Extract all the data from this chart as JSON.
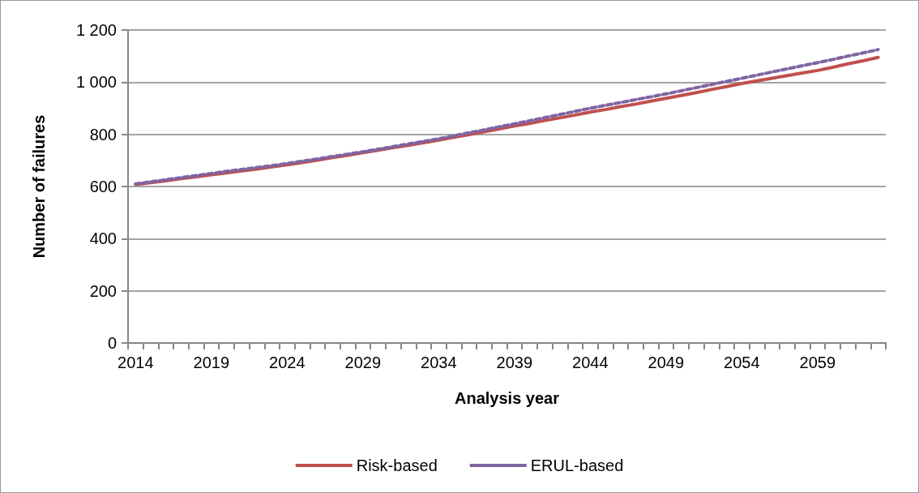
{
  "chart_data": {
    "type": "line",
    "xlabel": "Analysis year",
    "ylabel": "Number of failures",
    "categories": [
      "2014",
      null,
      null,
      null,
      null,
      "2019",
      null,
      null,
      null,
      null,
      "2024",
      null,
      null,
      null,
      null,
      "2029",
      null,
      null,
      null,
      null,
      "2034",
      null,
      null,
      null,
      null,
      "2039",
      null,
      null,
      null,
      null,
      "2044",
      null,
      null,
      null,
      null,
      "2049",
      null,
      null,
      null,
      null,
      "2054",
      null,
      null,
      null,
      null,
      "2059",
      null,
      null,
      null,
      null
    ],
    "series": [
      {
        "name": "Risk-based",
        "color": "#c0504d",
        "line_style": "solid",
        "values": [
          608,
          615,
          622,
          630,
          637,
          645,
          652,
          660,
          667,
          675,
          683,
          692,
          701,
          711,
          720,
          730,
          739,
          749,
          758,
          768,
          778,
          789,
          799,
          810,
          821,
          832,
          842,
          853,
          863,
          874,
          885,
          895,
          906,
          916,
          927,
          938,
          949,
          960,
          972,
          983,
          995,
          1005,
          1015,
          1025,
          1035,
          1045,
          1057,
          1070,
          1082,
          1095
        ]
      },
      {
        "name": "ERUL-based",
        "color": "#8064a2",
        "line_style": "dashed",
        "values": [
          610,
          618,
          626,
          634,
          642,
          650,
          658,
          665,
          673,
          680,
          688,
          697,
          706,
          715,
          724,
          733,
          743,
          753,
          763,
          773,
          783,
          794,
          806,
          817,
          829,
          840,
          852,
          864,
          876,
          888,
          900,
          911,
          922,
          933,
          944,
          955,
          967,
          979,
          991,
          1003,
          1015,
          1027,
          1039,
          1051,
          1063,
          1075,
          1087,
          1100,
          1112,
          1125
        ]
      }
    ],
    "ylim": [
      0,
      1200
    ],
    "yticks": [
      0,
      200,
      400,
      600,
      800,
      {
        "value": 1000,
        "label": "1 000"
      },
      {
        "value": 1200,
        "label": "1 200"
      }
    ],
    "grid": "y",
    "legend": "bottom",
    "marker": "none"
  }
}
